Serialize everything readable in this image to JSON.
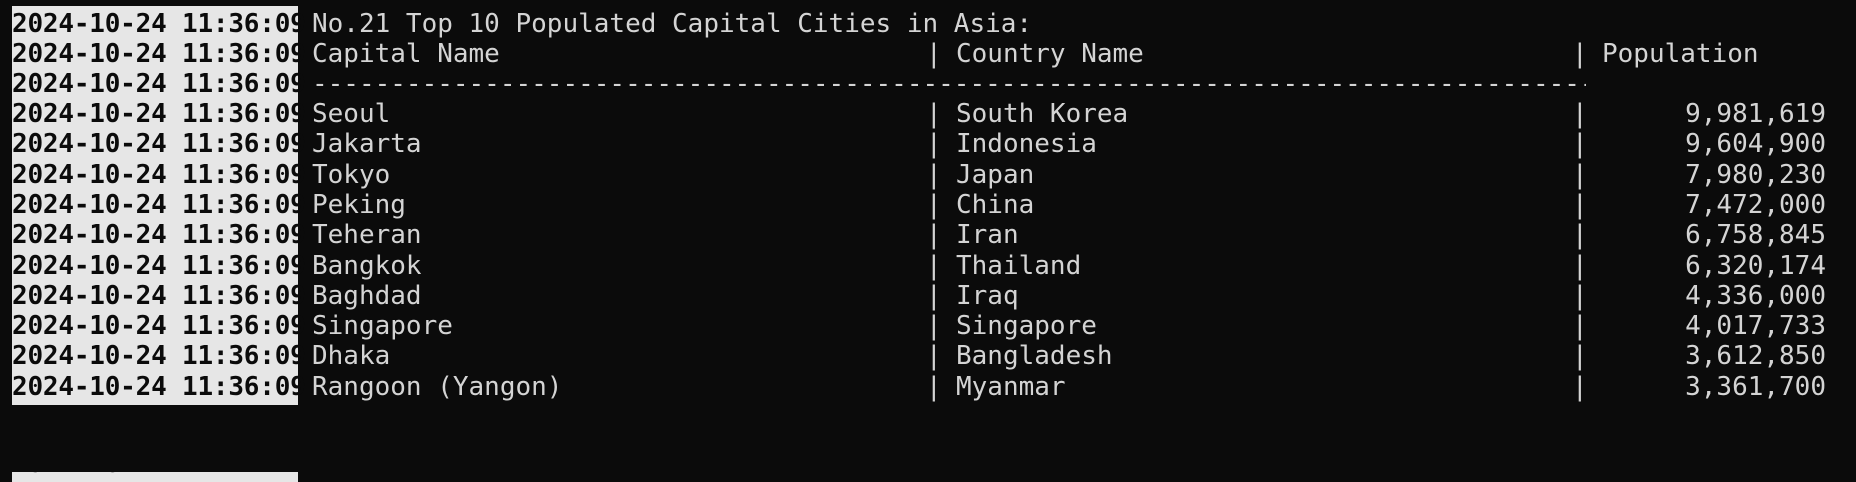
{
  "timestamp": "2024-10-24 11:36:09",
  "title": "No.21 Top 10 Populated Capital Cities in Asia:",
  "headers": {
    "capital": "Capital Name",
    "country": "Country Name",
    "population": "Population"
  },
  "separator_char": "|",
  "divider": "-----------------------------------------------------------------------------------------",
  "rows": [
    {
      "capital": "Seoul",
      "country": "South Korea",
      "population": "9,981,619"
    },
    {
      "capital": "Jakarta",
      "country": "Indonesia",
      "population": "9,604,900"
    },
    {
      "capital": "Tokyo",
      "country": "Japan",
      "population": "7,980,230"
    },
    {
      "capital": "Peking",
      "country": "China",
      "population": "7,472,000"
    },
    {
      "capital": "Teheran",
      "country": "Iran",
      "population": "6,758,845"
    },
    {
      "capital": "Bangkok",
      "country": "Thailand",
      "population": "6,320,174"
    },
    {
      "capital": "Baghdad",
      "country": "Iraq",
      "population": "4,336,000"
    },
    {
      "capital": "Singapore",
      "country": "Singapore",
      "population": "4,017,733"
    },
    {
      "capital": "Dhaka",
      "country": "Bangladesh",
      "population": "3,612,850"
    },
    {
      "capital": "Rangoon (Yangon)",
      "country": "Myanmar",
      "population": "3,361,700"
    }
  ]
}
